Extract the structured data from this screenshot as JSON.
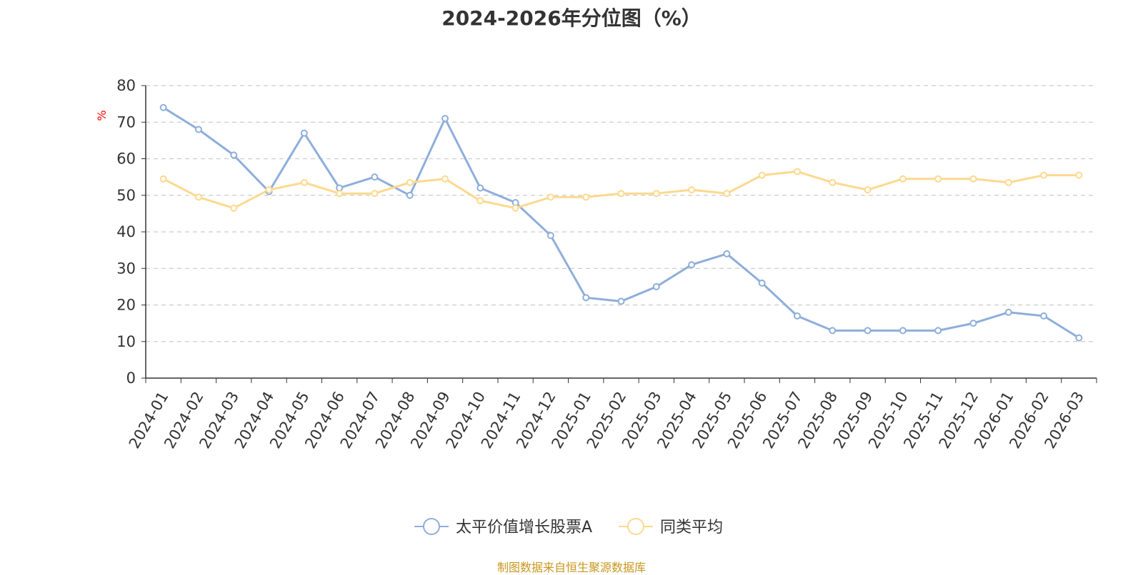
{
  "chart_data": {
    "type": "line",
    "title": "2024-2026年分位图（%）",
    "ylabel": "%",
    "ylim": [
      0,
      80
    ],
    "yticks": [
      0,
      10,
      20,
      30,
      40,
      50,
      60,
      70,
      80
    ],
    "grid": true,
    "legend_position": "bottom",
    "categories": [
      "2024-01",
      "2024-02",
      "2024-03",
      "2024-04",
      "2024-05",
      "2024-06",
      "2024-07",
      "2024-08",
      "2024-09",
      "2024-10",
      "2024-11",
      "2024-12",
      "2025-01",
      "2025-02",
      "2025-03",
      "2025-04",
      "2025-05",
      "2025-06",
      "2025-07",
      "2025-08",
      "2025-09",
      "2025-10",
      "2025-11",
      "2025-12",
      "2026-01",
      "2026-02",
      "2026-03"
    ],
    "series": [
      {
        "name": "太平价值增长股票A",
        "color": "#8eaedb",
        "values": [
          74,
          68,
          61,
          51,
          67,
          52,
          55,
          50,
          71,
          52,
          48,
          39,
          22,
          21,
          25,
          31,
          34,
          26,
          17,
          13,
          13,
          13,
          13,
          15,
          18,
          17,
          11
        ]
      },
      {
        "name": "同类平均",
        "color": "#fcd98e",
        "values": [
          54.5,
          49.5,
          46.5,
          51.5,
          53.5,
          50.5,
          50.5,
          53.5,
          54.5,
          48.5,
          46.5,
          49.5,
          49.5,
          50.5,
          50.5,
          51.5,
          50.5,
          55.5,
          56.5,
          53.5,
          51.5,
          54.5,
          54.5,
          54.5,
          53.5,
          55.5,
          55.5
        ]
      }
    ]
  },
  "source": "制图数据来自恒生聚源数据库"
}
